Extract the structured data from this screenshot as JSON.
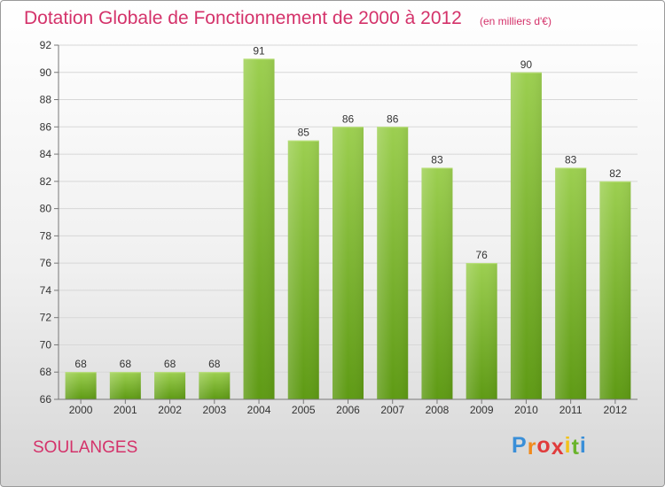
{
  "header": {
    "title": "Dotation Globale de Fonctionnement de 2000 à 2012",
    "subtitle": "(en milliers d'€)"
  },
  "footer": {
    "commune": "SOULANGES",
    "logo_letters": [
      "P",
      "r",
      "o",
      "x",
      "i",
      "t",
      "i"
    ],
    "logo_colors": [
      "#3a8fd8",
      "#f08a1c",
      "#e03c3c",
      "#e03c3c",
      "#f2c21a",
      "#6ab42c",
      "#3a8fd8"
    ]
  },
  "colors": {
    "accent": "#d4326a",
    "bar_light": "#9ccf50",
    "bar_dark": "#5e9a14",
    "axis": "#777777",
    "grid": "#d7d7d7",
    "text": "#333333"
  },
  "chart_data": {
    "type": "bar",
    "categories": [
      "2000",
      "2001",
      "2002",
      "2003",
      "2004",
      "2005",
      "2006",
      "2007",
      "2008",
      "2009",
      "2010",
      "2011",
      "2012"
    ],
    "values": [
      68,
      68,
      68,
      68,
      91,
      85,
      86,
      86,
      83,
      76,
      90,
      83,
      82
    ],
    "data_labels": [
      "68",
      "68",
      "68",
      "68",
      "91",
      "85",
      "86",
      "86",
      "83",
      "76",
      "90",
      "83",
      "82"
    ],
    "yticks": [
      "66",
      "68",
      "70",
      "72",
      "74",
      "76",
      "78",
      "80",
      "82",
      "84",
      "86",
      "88",
      "90",
      "92"
    ],
    "ylim": [
      66,
      92
    ],
    "grid": true
  }
}
